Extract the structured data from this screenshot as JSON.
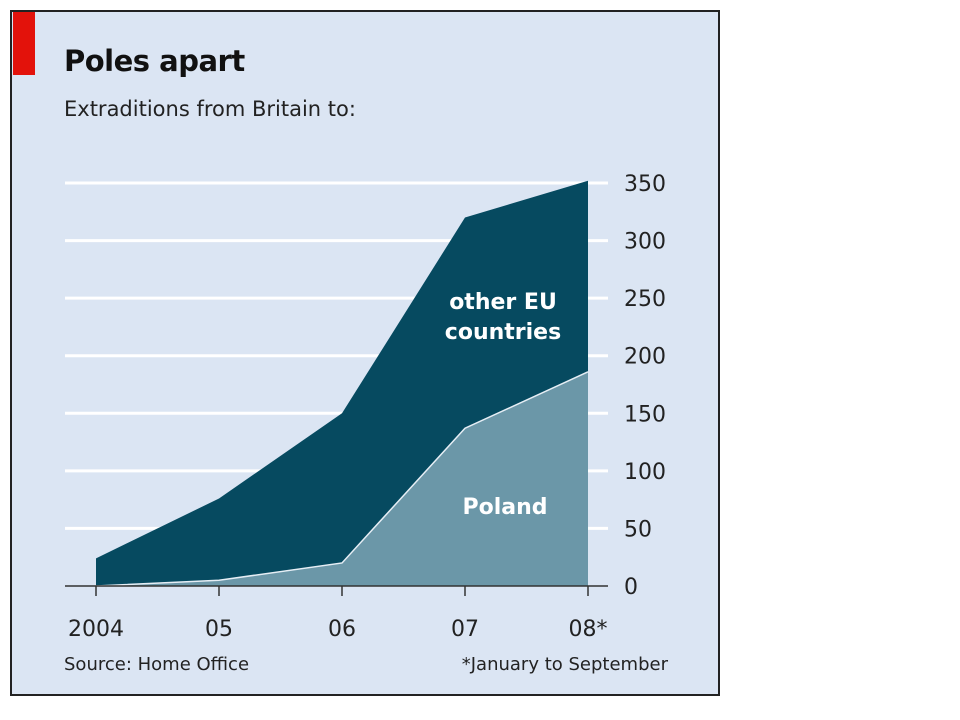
{
  "chart_data": {
    "type": "area",
    "stacked": true,
    "title": "Poles apart",
    "subtitle": "Extraditions from Britain to:",
    "categories": [
      "2004",
      "05",
      "06",
      "07",
      "08*"
    ],
    "series": [
      {
        "name": "Poland",
        "values": [
          0,
          5,
          20,
          137,
          186
        ],
        "color": "#6b97a8"
      },
      {
        "name": "other EU countries",
        "values": [
          24,
          71,
          130,
          183,
          166
        ],
        "color": "#064a60"
      }
    ],
    "totals": [
      24,
      76,
      150,
      320,
      352
    ],
    "series_labels": {
      "other": [
        "other EU",
        "countries"
      ],
      "poland": "Poland"
    },
    "yticks": [
      0,
      50,
      100,
      150,
      200,
      250,
      300,
      350
    ],
    "ylim": [
      0,
      350
    ],
    "y_axis_position": "right",
    "grid": true,
    "source": "Source: Home Office",
    "footnote": "*January to September",
    "accent_color": "#e3120b"
  }
}
